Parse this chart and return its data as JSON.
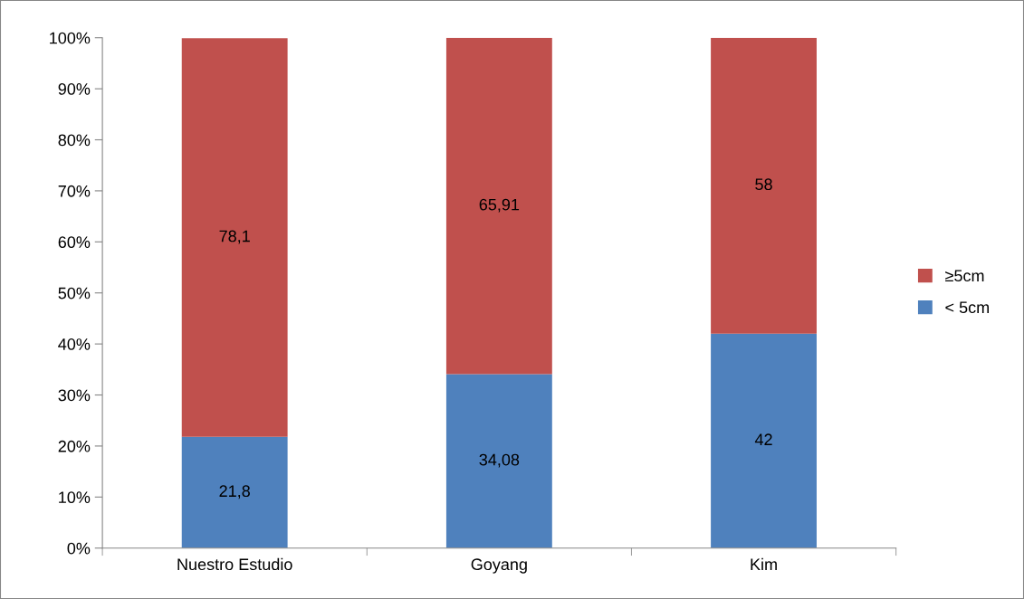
{
  "chart_data": {
    "type": "bar",
    "stacked": true,
    "categories": [
      "Nuestro Estudio",
      "Goyang",
      "Kim"
    ],
    "series": [
      {
        "name": "< 5cm",
        "color": "#4f81bd",
        "values": [
          21.8,
          34.08,
          42
        ],
        "value_labels": [
          "21,8",
          "34,08",
          "42"
        ]
      },
      {
        "name": "≥5cm",
        "color": "#c0504d",
        "values": [
          78.1,
          65.91,
          58
        ],
        "value_labels": [
          "78,1",
          "65,91",
          "58"
        ]
      }
    ],
    "ylim": [
      0,
      100
    ],
    "yticks": [
      {
        "value": 0,
        "label": "0%"
      },
      {
        "value": 10,
        "label": "10%"
      },
      {
        "value": 20,
        "label": "20%"
      },
      {
        "value": 30,
        "label": "30%"
      },
      {
        "value": 40,
        "label": "40%"
      },
      {
        "value": 50,
        "label": "50%"
      },
      {
        "value": 60,
        "label": "60%"
      },
      {
        "value": 70,
        "label": "70%"
      },
      {
        "value": 80,
        "label": "80%"
      },
      {
        "value": 90,
        "label": "90%"
      },
      {
        "value": 100,
        "label": "100%"
      }
    ],
    "grid": false,
    "legend": "right"
  }
}
